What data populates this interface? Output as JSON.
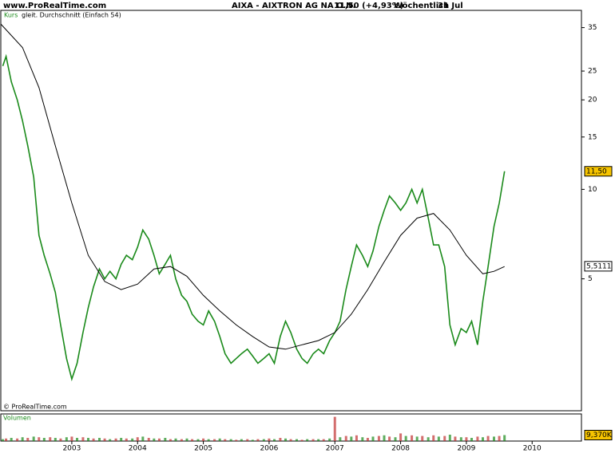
{
  "chart_data": {
    "type": "line",
    "site": "www.ProRealTime.com",
    "title": "AIXA - AIXTRON AG NA O.N.",
    "quote": "11,50 (+4,93%)",
    "period": "Wöchentlich",
    "date": "31 Jul",
    "copyright": "© ProRealTime.com",
    "log_scale": true,
    "grid": false,
    "xlim": [
      2001.92,
      2010.75
    ],
    "xticks": [
      2003,
      2004,
      2005,
      2006,
      2007,
      2008,
      2009,
      2010
    ],
    "ylim": [
      1.8,
      40
    ],
    "yticks": [
      5,
      10,
      15,
      20,
      25,
      35
    ],
    "series": [
      {
        "name": "Kurs",
        "color": "#1a8a1a",
        "x": [
          2001.95,
          2002,
          2002.08,
          2002.17,
          2002.25,
          2002.33,
          2002.42,
          2002.5,
          2002.58,
          2002.67,
          2002.75,
          2002.83,
          2002.92,
          2003,
          2003.08,
          2003.17,
          2003.25,
          2003.33,
          2003.42,
          2003.5,
          2003.58,
          2003.67,
          2003.75,
          2003.83,
          2003.92,
          2004,
          2004.08,
          2004.17,
          2004.25,
          2004.33,
          2004.42,
          2004.5,
          2004.58,
          2004.67,
          2004.75,
          2004.83,
          2004.92,
          2005,
          2005.08,
          2005.17,
          2005.25,
          2005.33,
          2005.42,
          2005.5,
          2005.58,
          2005.67,
          2005.75,
          2005.83,
          2005.92,
          2006,
          2006.08,
          2006.17,
          2006.25,
          2006.33,
          2006.42,
          2006.5,
          2006.58,
          2006.67,
          2006.75,
          2006.83,
          2006.92,
          2007,
          2007.08,
          2007.17,
          2007.25,
          2007.33,
          2007.42,
          2007.5,
          2007.58,
          2007.67,
          2007.75,
          2007.83,
          2007.92,
          2008,
          2008.08,
          2008.17,
          2008.25,
          2008.33,
          2008.42,
          2008.5,
          2008.58,
          2008.67,
          2008.75,
          2008.83,
          2008.92,
          2009,
          2009.08,
          2009.17,
          2009.25,
          2009.33,
          2009.42,
          2009.5,
          2009.58
        ],
        "values": [
          26,
          28,
          23,
          20,
          17,
          14,
          11,
          7,
          6,
          5.2,
          4.5,
          3.5,
          2.7,
          2.3,
          2.6,
          3.3,
          4.0,
          4.7,
          5.4,
          5.0,
          5.3,
          5.0,
          5.6,
          6.0,
          5.8,
          6.4,
          7.3,
          6.8,
          6.0,
          5.2,
          5.6,
          6.0,
          5.0,
          4.4,
          4.2,
          3.8,
          3.6,
          3.5,
          3.9,
          3.6,
          3.2,
          2.8,
          2.6,
          2.7,
          2.8,
          2.9,
          2.75,
          2.6,
          2.7,
          2.8,
          2.6,
          3.2,
          3.6,
          3.3,
          2.9,
          2.7,
          2.6,
          2.8,
          2.9,
          2.8,
          3.1,
          3.3,
          3.6,
          4.6,
          5.5,
          6.5,
          6.0,
          5.5,
          6.2,
          7.5,
          8.5,
          9.5,
          9.0,
          8.5,
          9.0,
          10.0,
          9.0,
          10.0,
          8.0,
          6.5,
          6.5,
          5.5,
          3.5,
          3.0,
          3.4,
          3.3,
          3.6,
          3.0,
          4.2,
          5.5,
          7.5,
          9.0,
          11.5
        ],
        "last": {
          "value": 11.5,
          "label": "11,50"
        }
      },
      {
        "name": "gleit. Durchschnitt (Einfach 54)",
        "color": "#000000",
        "x": [
          2001.92,
          2002.25,
          2002.5,
          2002.75,
          2003,
          2003.25,
          2003.5,
          2003.75,
          2004,
          2004.25,
          2004.5,
          2004.75,
          2005,
          2005.25,
          2005.5,
          2005.75,
          2006,
          2006.25,
          2006.5,
          2006.75,
          2007,
          2007.25,
          2007.5,
          2007.75,
          2008,
          2008.25,
          2008.5,
          2008.75,
          2009,
          2009.25,
          2009.42,
          2009.58
        ],
        "values": [
          36,
          30,
          22,
          14,
          9,
          6,
          4.9,
          4.6,
          4.8,
          5.4,
          5.5,
          5.1,
          4.4,
          3.9,
          3.5,
          3.2,
          2.95,
          2.9,
          3.0,
          3.1,
          3.3,
          3.8,
          4.6,
          5.7,
          7.0,
          8.0,
          8.3,
          7.3,
          6.0,
          5.2,
          5.3,
          5.5
        ],
        "last": {
          "value": 5.5111,
          "label": "5,5111"
        }
      }
    ],
    "volume": {
      "name": "Volumen",
      "color": "#c03030",
      "ylim": [
        0,
        40
      ],
      "values": [
        3,
        4,
        5,
        4,
        6,
        5,
        7,
        6,
        5,
        6,
        5,
        4,
        6,
        7,
        5,
        6,
        5,
        4,
        5,
        4,
        3,
        4,
        5,
        4,
        4,
        6,
        7,
        5,
        4,
        4,
        5,
        3,
        4,
        3,
        4,
        3,
        3,
        4,
        3,
        3,
        4,
        3,
        3,
        2,
        3,
        3,
        2,
        3,
        3,
        4,
        3,
        5,
        4,
        3,
        3,
        2,
        3,
        3,
        3,
        3,
        4,
        38,
        6,
        8,
        7,
        9,
        6,
        5,
        7,
        8,
        9,
        7,
        6,
        12,
        8,
        9,
        7,
        8,
        6,
        9,
        7,
        8,
        10,
        7,
        6,
        6,
        5,
        7,
        6,
        8,
        7,
        8,
        9.37
      ],
      "last": {
        "value": 9.37,
        "label": "9,370K"
      }
    }
  }
}
